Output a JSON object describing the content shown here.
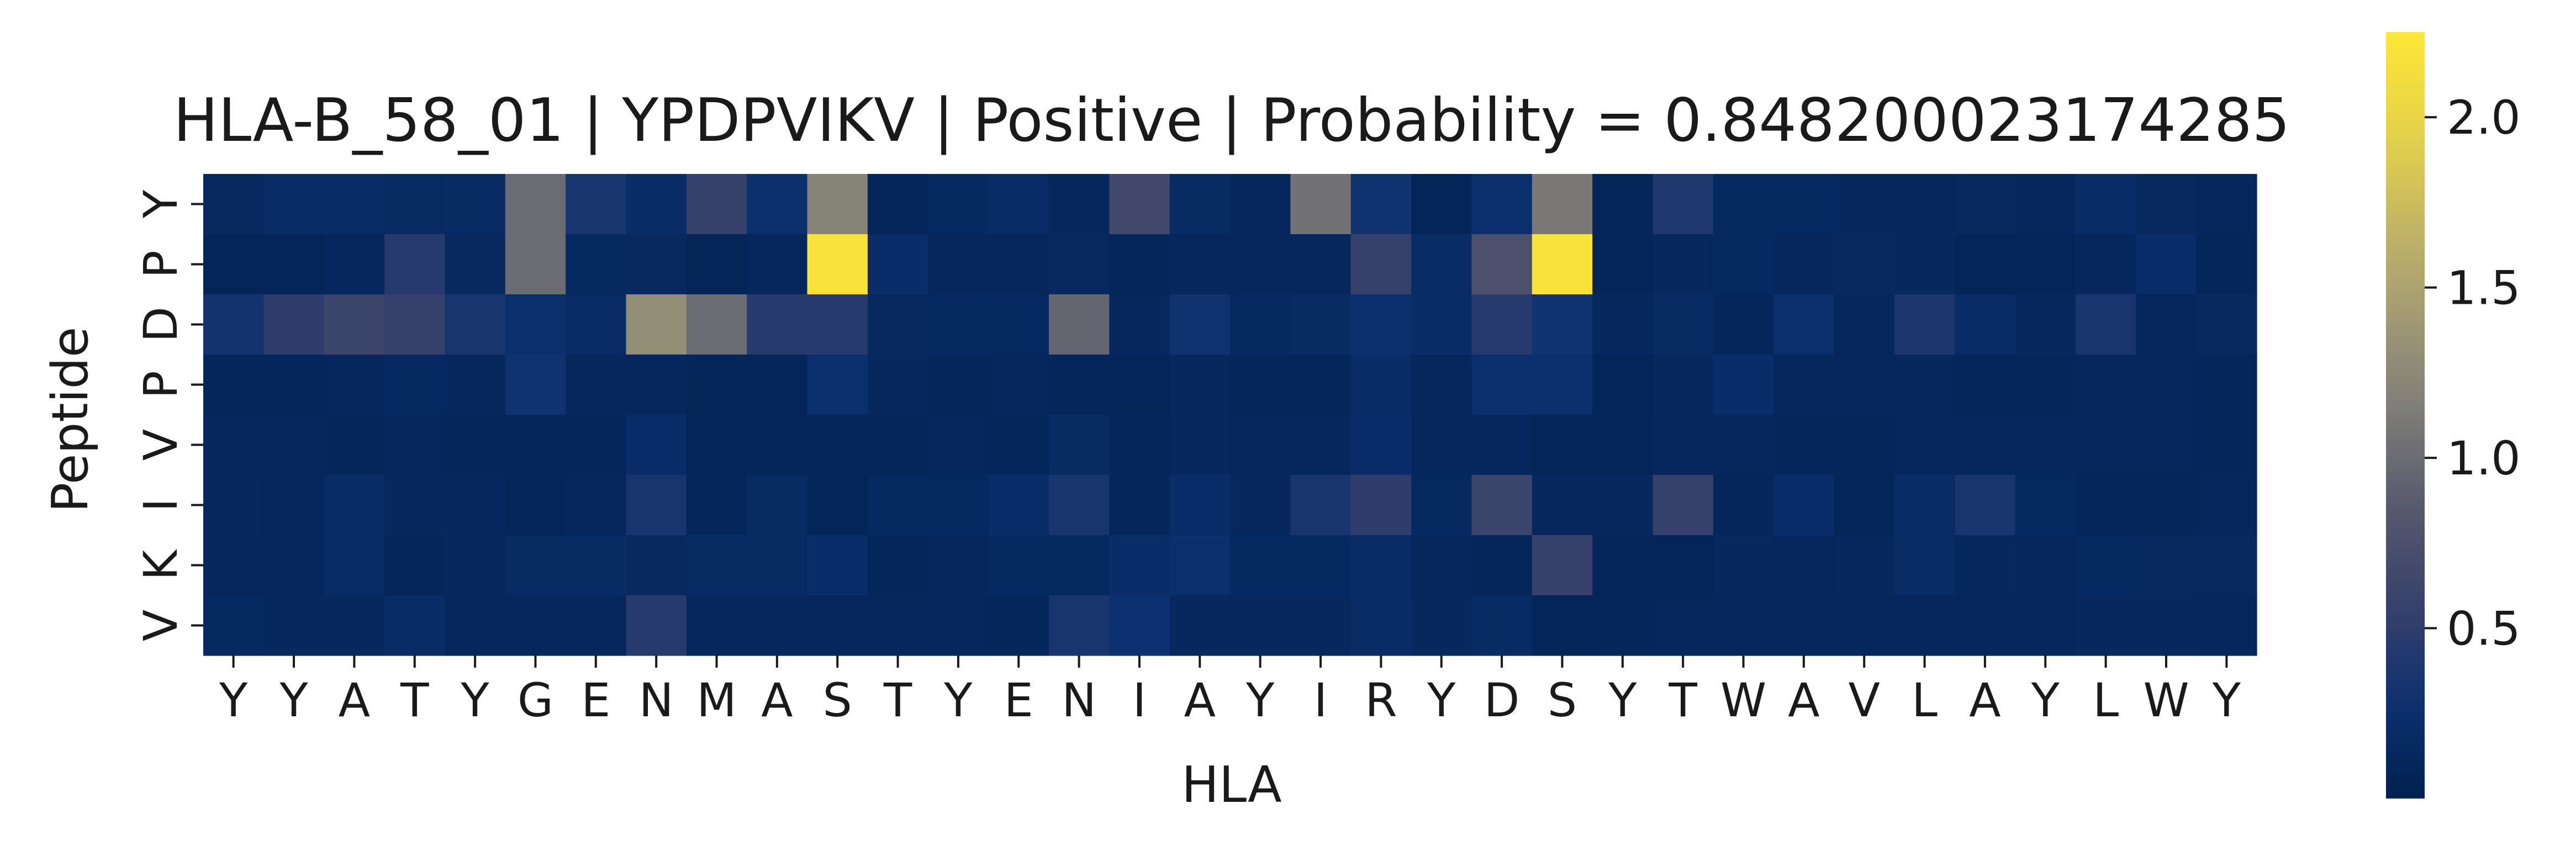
{
  "chart_data": {
    "type": "heatmap",
    "title": "HLA-B_58_01 | YPDPVIKV | Positive | Probability = 0.848200023174285",
    "xlabel": "HLA",
    "ylabel": "Peptide",
    "x_categories": [
      "Y",
      "Y",
      "A",
      "T",
      "Y",
      "G",
      "E",
      "N",
      "M",
      "A",
      "S",
      "T",
      "Y",
      "E",
      "N",
      "I",
      "A",
      "Y",
      "I",
      "R",
      "Y",
      "D",
      "S",
      "Y",
      "T",
      "W",
      "A",
      "V",
      "L",
      "A",
      "Y",
      "L",
      "W",
      "Y"
    ],
    "y_categories": [
      "Y",
      "P",
      "D",
      "P",
      "V",
      "I",
      "K",
      "V"
    ],
    "values": [
      [
        0.15,
        0.2,
        0.2,
        0.17,
        0.18,
        1.0,
        0.35,
        0.2,
        0.55,
        0.25,
        1.2,
        0.1,
        0.16,
        0.2,
        0.12,
        0.65,
        0.18,
        0.12,
        1.05,
        0.3,
        0.08,
        0.25,
        1.1,
        0.08,
        0.4,
        0.16,
        0.16,
        0.14,
        0.14,
        0.15,
        0.12,
        0.2,
        0.15,
        0.12
      ],
      [
        0.08,
        0.08,
        0.12,
        0.45,
        0.15,
        1.0,
        0.16,
        0.15,
        0.08,
        0.12,
        2.2,
        0.22,
        0.12,
        0.12,
        0.15,
        0.1,
        0.12,
        0.12,
        0.12,
        0.55,
        0.2,
        0.75,
        2.2,
        0.08,
        0.14,
        0.16,
        0.12,
        0.15,
        0.14,
        0.08,
        0.08,
        0.12,
        0.22,
        0.1
      ],
      [
        0.32,
        0.5,
        0.6,
        0.55,
        0.35,
        0.25,
        0.2,
        1.3,
        1.0,
        0.45,
        0.45,
        0.15,
        0.16,
        0.16,
        0.95,
        0.14,
        0.3,
        0.16,
        0.18,
        0.25,
        0.2,
        0.45,
        0.3,
        0.14,
        0.18,
        0.1,
        0.25,
        0.12,
        0.38,
        0.2,
        0.14,
        0.35,
        0.12,
        0.15
      ],
      [
        0.1,
        0.1,
        0.12,
        0.16,
        0.14,
        0.3,
        0.14,
        0.12,
        0.08,
        0.1,
        0.25,
        0.14,
        0.1,
        0.12,
        0.1,
        0.08,
        0.14,
        0.1,
        0.1,
        0.2,
        0.12,
        0.25,
        0.25,
        0.08,
        0.14,
        0.22,
        0.12,
        0.12,
        0.12,
        0.1,
        0.1,
        0.12,
        0.12,
        0.1
      ],
      [
        0.12,
        0.12,
        0.1,
        0.12,
        0.1,
        0.1,
        0.1,
        0.22,
        0.08,
        0.1,
        0.1,
        0.1,
        0.12,
        0.1,
        0.18,
        0.1,
        0.14,
        0.12,
        0.12,
        0.22,
        0.12,
        0.12,
        0.08,
        0.08,
        0.12,
        0.12,
        0.1,
        0.1,
        0.12,
        0.12,
        0.12,
        0.12,
        0.12,
        0.1
      ],
      [
        0.14,
        0.12,
        0.2,
        0.14,
        0.14,
        0.08,
        0.12,
        0.35,
        0.1,
        0.18,
        0.08,
        0.16,
        0.16,
        0.22,
        0.35,
        0.1,
        0.22,
        0.14,
        0.35,
        0.5,
        0.16,
        0.6,
        0.14,
        0.14,
        0.55,
        0.1,
        0.22,
        0.08,
        0.2,
        0.35,
        0.16,
        0.1,
        0.1,
        0.12
      ],
      [
        0.12,
        0.12,
        0.2,
        0.1,
        0.14,
        0.18,
        0.18,
        0.15,
        0.18,
        0.18,
        0.22,
        0.1,
        0.14,
        0.16,
        0.16,
        0.22,
        0.25,
        0.16,
        0.16,
        0.2,
        0.12,
        0.08,
        0.55,
        0.1,
        0.08,
        0.14,
        0.12,
        0.14,
        0.2,
        0.14,
        0.12,
        0.16,
        0.15,
        0.15
      ],
      [
        0.16,
        0.14,
        0.14,
        0.2,
        0.12,
        0.12,
        0.12,
        0.45,
        0.12,
        0.12,
        0.12,
        0.12,
        0.12,
        0.1,
        0.35,
        0.28,
        0.14,
        0.14,
        0.14,
        0.2,
        0.14,
        0.18,
        0.08,
        0.1,
        0.12,
        0.12,
        0.12,
        0.12,
        0.12,
        0.12,
        0.12,
        0.14,
        0.14,
        0.12
      ]
    ],
    "colorbar": {
      "colormap": "cividis",
      "vmin": 0.0,
      "vmax": 2.25,
      "ticks": [
        0.5,
        1.0,
        1.5,
        2.0
      ],
      "tick_labels": [
        "0.5",
        "1.0",
        "1.5",
        "2.0"
      ]
    },
    "grid": false,
    "legend": "colorbar-right"
  }
}
